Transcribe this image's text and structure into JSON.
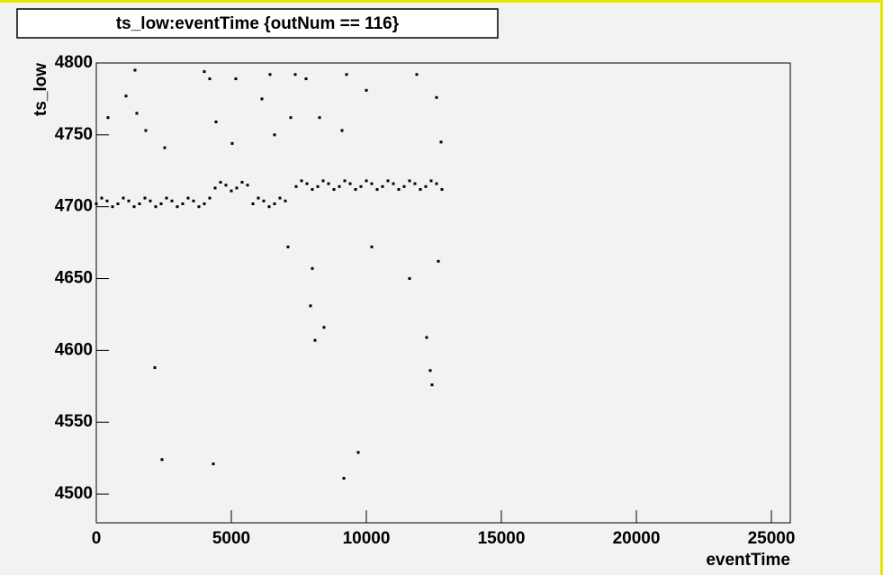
{
  "chart_data": {
    "type": "scatter",
    "title": "ts_low:eventTime {outNum == 116}",
    "x_label": "eventTime",
    "y_label": "ts_low",
    "color": "#000000",
    "xlim": [
      0,
      25700
    ],
    "ylim": [
      4480,
      4800
    ],
    "xticks": [
      0,
      5000,
      10000,
      15000,
      20000,
      25000
    ],
    "yticks": [
      4500,
      4550,
      4600,
      4650,
      4700,
      4750,
      4800
    ],
    "x": [
      0,
      200,
      400,
      600,
      800,
      1000,
      1200,
      1400,
      1600,
      1800,
      2000,
      2200,
      2400,
      2600,
      2800,
      3000,
      3200,
      3400,
      3600,
      3800,
      4000,
      4200,
      4400,
      4600,
      4800,
      5000,
      5200,
      5400,
      5600,
      5800,
      6000,
      6200,
      6400,
      6600,
      6800,
      7000,
      7400,
      7600,
      7800,
      8000,
      8200,
      8400,
      8600,
      8800,
      9000,
      9200,
      9400,
      9600,
      9800,
      10000,
      10200,
      10400,
      10600,
      10800,
      11000,
      11200,
      11400,
      11600,
      11800,
      12000,
      12200,
      12400,
      12600,
      12800,
      1433,
      1100,
      1500,
      433,
      4000,
      4200,
      5167,
      6433,
      7367,
      7767,
      7200,
      6133,
      9267,
      10000,
      11867,
      12600,
      5033,
      4433,
      6600,
      8267,
      9100,
      2533,
      1833,
      7100,
      7933,
      8100,
      8433,
      8000,
      10200,
      11600,
      12233,
      12367,
      12433,
      12667,
      2167,
      2433,
      4333,
      9167,
      9700,
      12767
    ],
    "values": [
      4702,
      4706,
      4704,
      4700,
      4702,
      4706,
      4704,
      4700,
      4702,
      4706,
      4704,
      4700,
      4702,
      4706,
      4704,
      4700,
      4702,
      4706,
      4704,
      4700,
      4702,
      4706,
      4713,
      4717,
      4715,
      4711,
      4713,
      4717,
      4715,
      4702,
      4706,
      4704,
      4700,
      4702,
      4706,
      4704,
      4714,
      4718,
      4716,
      4712,
      4714,
      4718,
      4716,
      4712,
      4714,
      4718,
      4716,
      4712,
      4714,
      4718,
      4716,
      4712,
      4714,
      4718,
      4716,
      4712,
      4714,
      4718,
      4716,
      4712,
      4714,
      4718,
      4716,
      4712,
      4795,
      4777,
      4765,
      4762,
      4794,
      4789,
      4789,
      4792,
      4792,
      4789,
      4762,
      4775,
      4792,
      4781,
      4792,
      4776,
      4744,
      4759,
      4750,
      4762,
      4753,
      4741,
      4753,
      4672,
      4631,
      4607,
      4616,
      4657,
      4672,
      4650,
      4609,
      4586,
      4576,
      4662,
      4588,
      4524,
      4521,
      4511,
      4529,
      4745
    ]
  }
}
